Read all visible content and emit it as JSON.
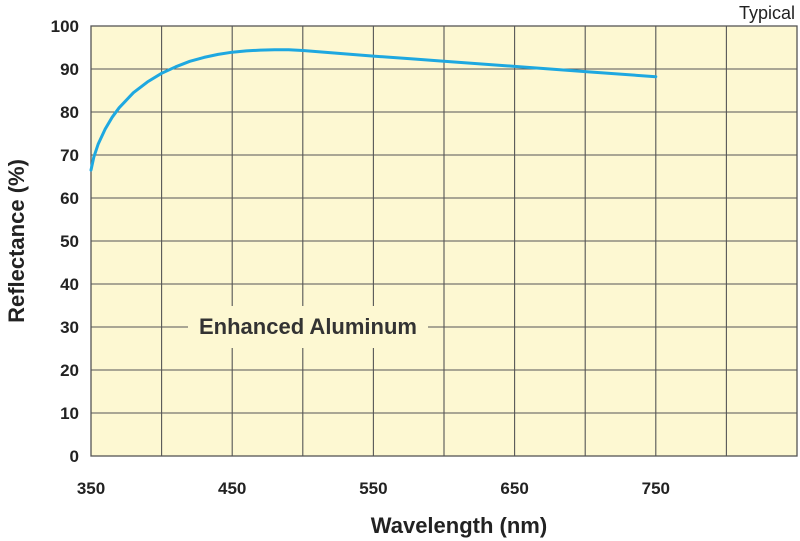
{
  "chart_data": {
    "type": "line",
    "title": "",
    "note": "Typical",
    "xlabel": "Wavelength (nm)",
    "ylabel": "Reflectance (%)",
    "xlim": [
      350,
      850
    ],
    "ylim": [
      0,
      100
    ],
    "x_ticks": [
      350,
      450,
      550,
      650,
      750
    ],
    "y_ticks": [
      0,
      10,
      20,
      30,
      40,
      50,
      60,
      70,
      80,
      90,
      100
    ],
    "grid": true,
    "background_color": "#fdf8d2",
    "grid_color": "#555555",
    "series": [
      {
        "name": "Enhanced Aluminum",
        "color": "#1ea8e0",
        "x": [
          350,
          352,
          355,
          360,
          365,
          370,
          380,
          390,
          400,
          410,
          420,
          430,
          440,
          450,
          460,
          470,
          480,
          490,
          500,
          520,
          550,
          580,
          600,
          650,
          700,
          750
        ],
        "y": [
          66.5,
          69.5,
          72.5,
          76.0,
          78.8,
          81.0,
          84.5,
          87.0,
          89.0,
          90.5,
          91.8,
          92.7,
          93.4,
          93.9,
          94.2,
          94.4,
          94.5,
          94.5,
          94.3,
          93.8,
          93.0,
          92.3,
          91.8,
          90.6,
          89.4,
          88.2
        ]
      }
    ]
  }
}
